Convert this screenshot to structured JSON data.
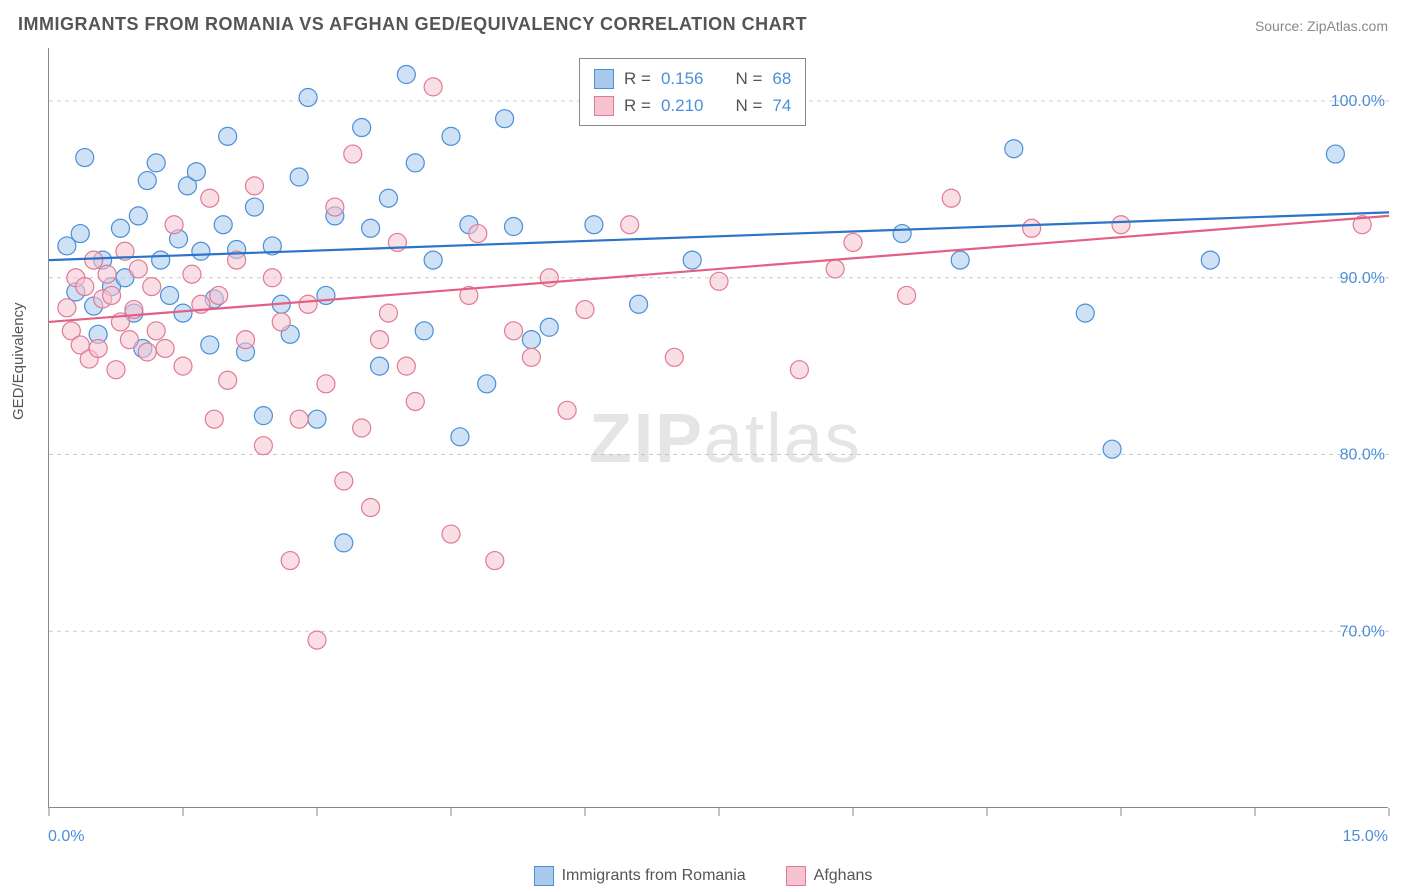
{
  "title": "IMMIGRANTS FROM ROMANIA VS AFGHAN GED/EQUIVALENCY CORRELATION CHART",
  "source": "Source: ZipAtlas.com",
  "ylabel": "GED/Equivalency",
  "watermark_zip": "ZIP",
  "watermark_atlas": "atlas",
  "chart": {
    "type": "scatter",
    "xlim": [
      0,
      15
    ],
    "ylim": [
      60,
      103
    ],
    "x_ticks": [
      0,
      1.5,
      3,
      4.5,
      6,
      7.5,
      9,
      10.5,
      12,
      13.5,
      15
    ],
    "y_gridlines": [
      70,
      80,
      90,
      100
    ],
    "x_axis_labels": {
      "min": "0.0%",
      "max": "15.0%"
    },
    "y_axis_labels": [
      "70.0%",
      "80.0%",
      "90.0%",
      "100.0%"
    ],
    "grid_color": "#cccccc",
    "background_color": "#ffffff",
    "marker_radius": 9,
    "marker_opacity": 0.55,
    "trend_line_width": 2.2,
    "series": [
      {
        "name": "Immigrants from Romania",
        "color_fill": "#a8c9ec",
        "color_stroke": "#4a8fd8",
        "line_color": "#2b74c7",
        "R": "0.156",
        "N": "68",
        "trend": {
          "x1": 0,
          "y1": 91.0,
          "x2": 15,
          "y2": 93.7
        },
        "points": [
          [
            0.2,
            91.8
          ],
          [
            0.35,
            92.5
          ],
          [
            0.3,
            89.2
          ],
          [
            0.5,
            88.4
          ],
          [
            0.4,
            96.8
          ],
          [
            0.55,
            86.8
          ],
          [
            0.6,
            91.0
          ],
          [
            0.7,
            89.5
          ],
          [
            0.8,
            92.8
          ],
          [
            0.85,
            90.0
          ],
          [
            0.95,
            88.0
          ],
          [
            1.0,
            93.5
          ],
          [
            1.05,
            86.0
          ],
          [
            1.1,
            95.5
          ],
          [
            1.2,
            96.5
          ],
          [
            1.25,
            91.0
          ],
          [
            1.35,
            89.0
          ],
          [
            1.45,
            92.2
          ],
          [
            1.5,
            88.0
          ],
          [
            1.55,
            95.2
          ],
          [
            1.65,
            96.0
          ],
          [
            1.7,
            91.5
          ],
          [
            1.8,
            86.2
          ],
          [
            1.85,
            88.8
          ],
          [
            1.95,
            93.0
          ],
          [
            2.0,
            98.0
          ],
          [
            2.1,
            91.6
          ],
          [
            2.2,
            85.8
          ],
          [
            2.3,
            94.0
          ],
          [
            2.4,
            82.2
          ],
          [
            2.5,
            91.8
          ],
          [
            2.6,
            88.5
          ],
          [
            2.7,
            86.8
          ],
          [
            2.8,
            95.7
          ],
          [
            2.9,
            100.2
          ],
          [
            3.0,
            82.0
          ],
          [
            3.1,
            89.0
          ],
          [
            3.2,
            93.5
          ],
          [
            3.3,
            75.0
          ],
          [
            3.5,
            98.5
          ],
          [
            3.6,
            92.8
          ],
          [
            3.7,
            85.0
          ],
          [
            3.8,
            94.5
          ],
          [
            4.0,
            101.5
          ],
          [
            4.1,
            96.5
          ],
          [
            4.2,
            87.0
          ],
          [
            4.3,
            91.0
          ],
          [
            4.5,
            98.0
          ],
          [
            4.6,
            81.0
          ],
          [
            4.7,
            93.0
          ],
          [
            4.9,
            84.0
          ],
          [
            5.1,
            99.0
          ],
          [
            5.2,
            92.9
          ],
          [
            5.4,
            86.5
          ],
          [
            5.6,
            87.2
          ],
          [
            6.1,
            93.0
          ],
          [
            6.6,
            88.5
          ],
          [
            7.2,
            91.0
          ],
          [
            9.55,
            92.5
          ],
          [
            10.2,
            91.0
          ],
          [
            10.8,
            97.3
          ],
          [
            11.6,
            88.0
          ],
          [
            11.9,
            80.3
          ],
          [
            13.0,
            91.0
          ],
          [
            14.4,
            97.0
          ]
        ]
      },
      {
        "name": "Afghans",
        "color_fill": "#f5c3cf",
        "color_stroke": "#e17a94",
        "line_color": "#e46083",
        "R": "0.210",
        "N": "74",
        "trend": {
          "x1": 0,
          "y1": 87.5,
          "x2": 15,
          "y2": 93.5
        },
        "points": [
          [
            0.2,
            88.3
          ],
          [
            0.25,
            87.0
          ],
          [
            0.3,
            90.0
          ],
          [
            0.35,
            86.2
          ],
          [
            0.4,
            89.5
          ],
          [
            0.45,
            85.4
          ],
          [
            0.5,
            91.0
          ],
          [
            0.55,
            86.0
          ],
          [
            0.6,
            88.8
          ],
          [
            0.65,
            90.2
          ],
          [
            0.7,
            89.0
          ],
          [
            0.75,
            84.8
          ],
          [
            0.8,
            87.5
          ],
          [
            0.85,
            91.5
          ],
          [
            0.9,
            86.5
          ],
          [
            0.95,
            88.2
          ],
          [
            1.0,
            90.5
          ],
          [
            1.1,
            85.8
          ],
          [
            1.15,
            89.5
          ],
          [
            1.2,
            87.0
          ],
          [
            1.3,
            86.0
          ],
          [
            1.4,
            93.0
          ],
          [
            1.5,
            85.0
          ],
          [
            1.6,
            90.2
          ],
          [
            1.7,
            88.5
          ],
          [
            1.8,
            94.5
          ],
          [
            1.85,
            82.0
          ],
          [
            1.9,
            89.0
          ],
          [
            2.0,
            84.2
          ],
          [
            2.1,
            91.0
          ],
          [
            2.2,
            86.5
          ],
          [
            2.3,
            95.2
          ],
          [
            2.4,
            80.5
          ],
          [
            2.5,
            90.0
          ],
          [
            2.6,
            87.5
          ],
          [
            2.7,
            74.0
          ],
          [
            2.8,
            82.0
          ],
          [
            2.9,
            88.5
          ],
          [
            3.0,
            69.5
          ],
          [
            3.1,
            84.0
          ],
          [
            3.2,
            94.0
          ],
          [
            3.3,
            78.5
          ],
          [
            3.4,
            97.0
          ],
          [
            3.5,
            81.5
          ],
          [
            3.6,
            77.0
          ],
          [
            3.7,
            86.5
          ],
          [
            3.8,
            88.0
          ],
          [
            3.9,
            92.0
          ],
          [
            4.0,
            85.0
          ],
          [
            4.1,
            83.0
          ],
          [
            4.3,
            100.8
          ],
          [
            4.5,
            75.5
          ],
          [
            4.7,
            89.0
          ],
          [
            4.8,
            92.5
          ],
          [
            4.99,
            74.0
          ],
          [
            5.2,
            87.0
          ],
          [
            5.4,
            85.5
          ],
          [
            5.6,
            90.0
          ],
          [
            5.8,
            82.5
          ],
          [
            6.0,
            88.2
          ],
          [
            6.5,
            93.0
          ],
          [
            7.0,
            85.5
          ],
          [
            7.5,
            89.8
          ],
          [
            7.95,
            101.3
          ],
          [
            8.4,
            84.8
          ],
          [
            8.8,
            90.5
          ],
          [
            9.0,
            92.0
          ],
          [
            9.6,
            89.0
          ],
          [
            10.1,
            94.5
          ],
          [
            11.0,
            92.8
          ],
          [
            12.0,
            93.0
          ],
          [
            14.7,
            93.0
          ]
        ]
      }
    ]
  },
  "legend_text": {
    "R_label": "R =",
    "N_label": "N ="
  },
  "bottom_legend": [
    {
      "label": "Immigrants from Romania",
      "fill": "#a8c9ec",
      "stroke": "#4a8fd8"
    },
    {
      "label": "Afghans",
      "fill": "#f5c3cf",
      "stroke": "#e17a94"
    }
  ]
}
